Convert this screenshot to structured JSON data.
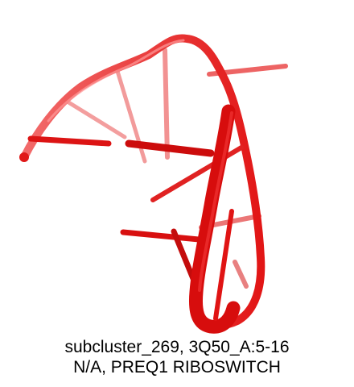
{
  "figure": {
    "subject": "RNA backbone cartoon with base-pair sticks",
    "colors": {
      "backbone_front": "#e01010",
      "backbone_back": "#f06a6a",
      "backbone_highlight": "#ff6b6b",
      "background": "#ffffff"
    }
  },
  "caption": {
    "line1": "subcluster_269, 3Q50_A:5-16",
    "line2": "N/A, PREQ1 RIBOSWITCH"
  }
}
